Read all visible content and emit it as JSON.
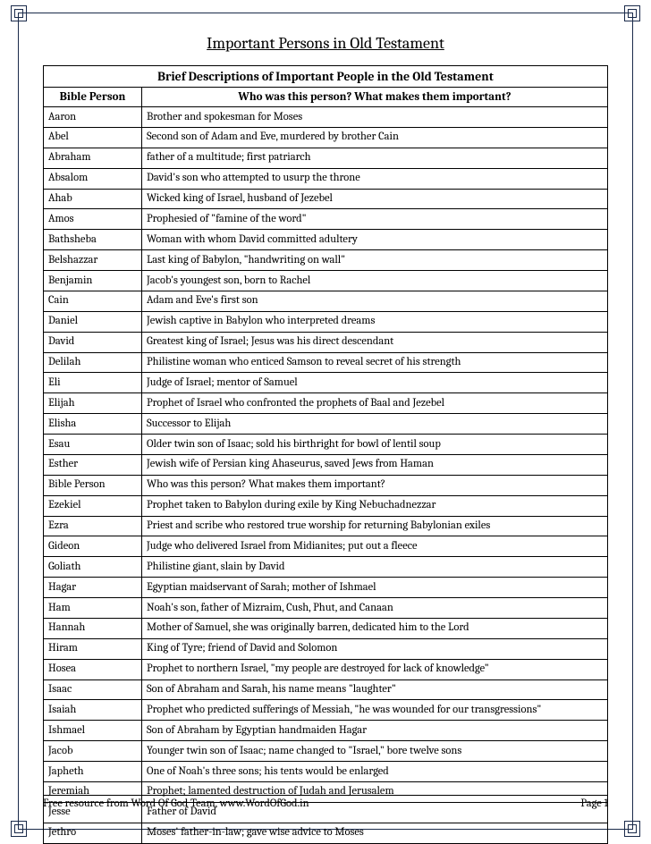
{
  "title": "Important Persons in Old Testament",
  "table": {
    "caption": "Brief Descriptions of Important People in the Old Testament",
    "columns": [
      "Bible Person",
      "Who was this person?  What makes them important?"
    ],
    "col_widths": [
      "110px",
      "auto"
    ],
    "border_color": "#000000",
    "font_size_pt": 9.5,
    "rows": [
      [
        "Aaron",
        "Brother and spokesman for Moses"
      ],
      [
        "Abel",
        "Second son of Adam and Eve, murdered by brother Cain"
      ],
      [
        "Abraham",
        "father of a multitude; first patriarch"
      ],
      [
        "Absalom",
        "David's son who attempted to usurp the throne"
      ],
      [
        "Ahab",
        "Wicked king of Israel, husband of Jezebel"
      ],
      [
        "Amos",
        "Prophesied of \"famine of the word\""
      ],
      [
        "Bathsheba",
        "Woman with whom David committed adultery"
      ],
      [
        "Belshazzar",
        "Last king of Babylon, \"handwriting on wall\""
      ],
      [
        "Benjamin",
        "Jacob's youngest son, born to Rachel"
      ],
      [
        "Cain",
        "Adam and Eve's first son"
      ],
      [
        "Daniel",
        "Jewish captive in Babylon who interpreted dreams"
      ],
      [
        "David",
        "Greatest king of Israel; Jesus was his direct descendant"
      ],
      [
        "Delilah",
        "Philistine woman who enticed Samson to reveal secret of his strength"
      ],
      [
        "Eli",
        "Judge of Israel; mentor of Samuel"
      ],
      [
        "Elijah",
        "Prophet of Israel who confronted the prophets of Baal and Jezebel"
      ],
      [
        "Elisha",
        "Successor to Elijah"
      ],
      [
        "Esau",
        "Older twin son of Isaac; sold his birthright for bowl of lentil soup"
      ],
      [
        "Esther",
        "Jewish wife of Persian king Ahaseurus, saved Jews from Haman"
      ],
      [
        "Bible Person",
        "Who was this person?  What makes them important?"
      ],
      [
        "Ezekiel",
        "Prophet taken to Babylon during exile by King Nebuchadnezzar"
      ],
      [
        "Ezra",
        "Priest and scribe who restored true worship for returning Babylonian exiles"
      ],
      [
        "Gideon",
        "Judge who delivered Israel from Midianites; put out a fleece"
      ],
      [
        "Goliath",
        "Philistine giant, slain by David"
      ],
      [
        "Hagar",
        "Egyptian maidservant of Sarah; mother of Ishmael"
      ],
      [
        "Ham",
        "Noah's son, father of Mizraim, Cush, Phut, and Canaan"
      ],
      [
        "Hannah",
        "Mother of Samuel, she was originally barren, dedicated him to the Lord"
      ],
      [
        "Hiram",
        "King of Tyre; friend of David and Solomon"
      ],
      [
        "Hosea",
        "Prophet to northern Israel, \"my people are destroyed for lack of knowledge\""
      ],
      [
        "Isaac",
        "Son of Abraham and Sarah, his name means \"laughter\""
      ],
      [
        "Isaiah",
        "Prophet who predicted sufferings of Messiah, \"he was wounded for our transgressions\""
      ],
      [
        "Ishmael",
        "Son of Abraham by Egyptian handmaiden Hagar"
      ],
      [
        "Jacob",
        "Younger twin son of Isaac; name changed to \"Israel,\" bore twelve sons"
      ],
      [
        "Japheth",
        "One of Noah's three sons; his tents would be enlarged"
      ],
      [
        "Jeremiah",
        "Prophet; lamented destruction of Judah and Jerusalem"
      ],
      [
        "Jesse",
        "Father of David"
      ],
      [
        "Jethro",
        "Moses' father-in-law; gave wise advice to Moses"
      ]
    ]
  },
  "footer": {
    "left": "Free resource from Word Of God Team, www.WordOfGod.in",
    "right": "Page 1"
  },
  "frame_color": "#1a2a4a",
  "background_color": "#ffffff"
}
